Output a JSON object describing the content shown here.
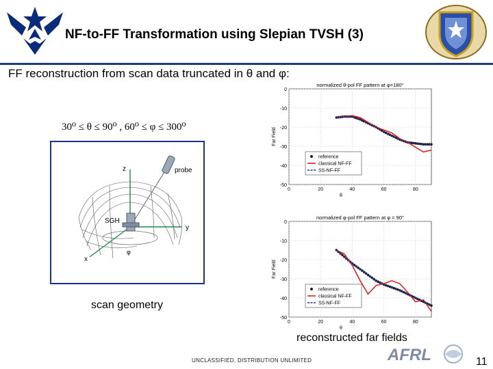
{
  "slide": {
    "title": "NF-to-FF Transformation using Slepian TVSH (3)",
    "subtitle": "FF reconstruction from scan data truncated in θ and φ:",
    "formula": "30⁰ ≤ θ ≤ 90⁰ , 60⁰ ≤ φ ≤ 300⁰",
    "scan_caption": "scan geometry",
    "ff_caption": "reconstructed far fields",
    "footer": "UNCLASSIFIED, DISTRIBUTION UNLIMITED",
    "page_number": "11",
    "logo_text": "AFRL"
  },
  "geometry": {
    "label_z": "z",
    "label_y": "y",
    "label_x": "x",
    "label_probe": "probe",
    "label_sgh": "SGH",
    "label_phi": "φ"
  },
  "colors": {
    "reference": "#1a1a1a",
    "classical": "#e02020",
    "ss": "#2030a0",
    "frame": "#1c2f8a"
  },
  "chart_data": [
    {
      "type": "line",
      "title": "normalized θ-pol FF pattern at φ=180°",
      "xlabel": "θ",
      "ylabel": "Far Field",
      "xlim": [
        0,
        90
      ],
      "ylim": [
        -50,
        0
      ],
      "x_ticks": [
        "0",
        "20",
        "40",
        "60",
        "80"
      ],
      "y_ticks": [
        "0",
        "-10",
        "-20",
        "-30",
        "-40",
        "-50"
      ],
      "legend": [
        "reference",
        "classical NF-FF",
        "SS-NF-FF"
      ],
      "legend_position": "bottom-left",
      "grid": true,
      "series": [
        {
          "name": "reference",
          "x": [
            30,
            35,
            40,
            45,
            50,
            55,
            60,
            65,
            70,
            75,
            80,
            85,
            90
          ],
          "values": [
            -15,
            -14.5,
            -14.5,
            -16,
            -18,
            -20,
            -22.5,
            -24.5,
            -26.5,
            -28,
            -28.5,
            -29,
            -29
          ]
        },
        {
          "name": "classical NF-FF",
          "x": [
            30,
            35,
            40,
            45,
            50,
            55,
            60,
            65,
            70,
            75,
            80,
            85,
            90
          ],
          "values": [
            -15,
            -14.5,
            -14,
            -15,
            -17.5,
            -20,
            -21.5,
            -23,
            -26,
            -28,
            -30.5,
            -33,
            -32
          ]
        },
        {
          "name": "SS-NF-FF",
          "x": [
            30,
            35,
            40,
            45,
            50,
            55,
            60,
            65,
            70,
            75,
            80,
            85,
            90
          ],
          "values": [
            -15,
            -14.5,
            -14.5,
            -16,
            -18,
            -20,
            -22.5,
            -24.5,
            -26.5,
            -28,
            -28.5,
            -29,
            -29
          ]
        }
      ]
    },
    {
      "type": "line",
      "title": "normalized φ-pol FF pattern at φ = 90°",
      "xlabel": "θ",
      "ylabel": "Far Field",
      "xlim": [
        0,
        90
      ],
      "ylim": [
        -50,
        0
      ],
      "x_ticks": [
        "0",
        "20",
        "40",
        "60",
        "80"
      ],
      "y_ticks": [
        "0",
        "-10",
        "-20",
        "-30",
        "-40",
        "-50"
      ],
      "legend": [
        "reference",
        "classical NF-FF",
        "SS-NF-FF"
      ],
      "legend_position": "bottom-left",
      "grid": true,
      "series": [
        {
          "name": "reference",
          "x": [
            30,
            35,
            40,
            45,
            50,
            55,
            60,
            65,
            70,
            75,
            80,
            85,
            90
          ],
          "values": [
            -15,
            -18.5,
            -22,
            -25,
            -28,
            -31,
            -33,
            -34.5,
            -36,
            -38,
            -40,
            -42,
            -44
          ]
        },
        {
          "name": "classical NF-FF",
          "x": [
            30,
            35,
            40,
            45,
            50,
            55,
            60,
            65,
            70,
            75,
            80,
            85,
            90
          ],
          "values": [
            -15,
            -17,
            -23,
            -31,
            -38,
            -33.5,
            -32.5,
            -31,
            -32.5,
            -37,
            -42,
            -41,
            -47
          ]
        },
        {
          "name": "SS-NF-FF",
          "x": [
            30,
            35,
            40,
            45,
            50,
            55,
            60,
            65,
            70,
            75,
            80,
            85,
            90
          ],
          "values": [
            -15,
            -18.5,
            -22,
            -25,
            -28,
            -31,
            -33,
            -34.5,
            -36,
            -38,
            -40,
            -42,
            -44
          ]
        }
      ]
    }
  ]
}
